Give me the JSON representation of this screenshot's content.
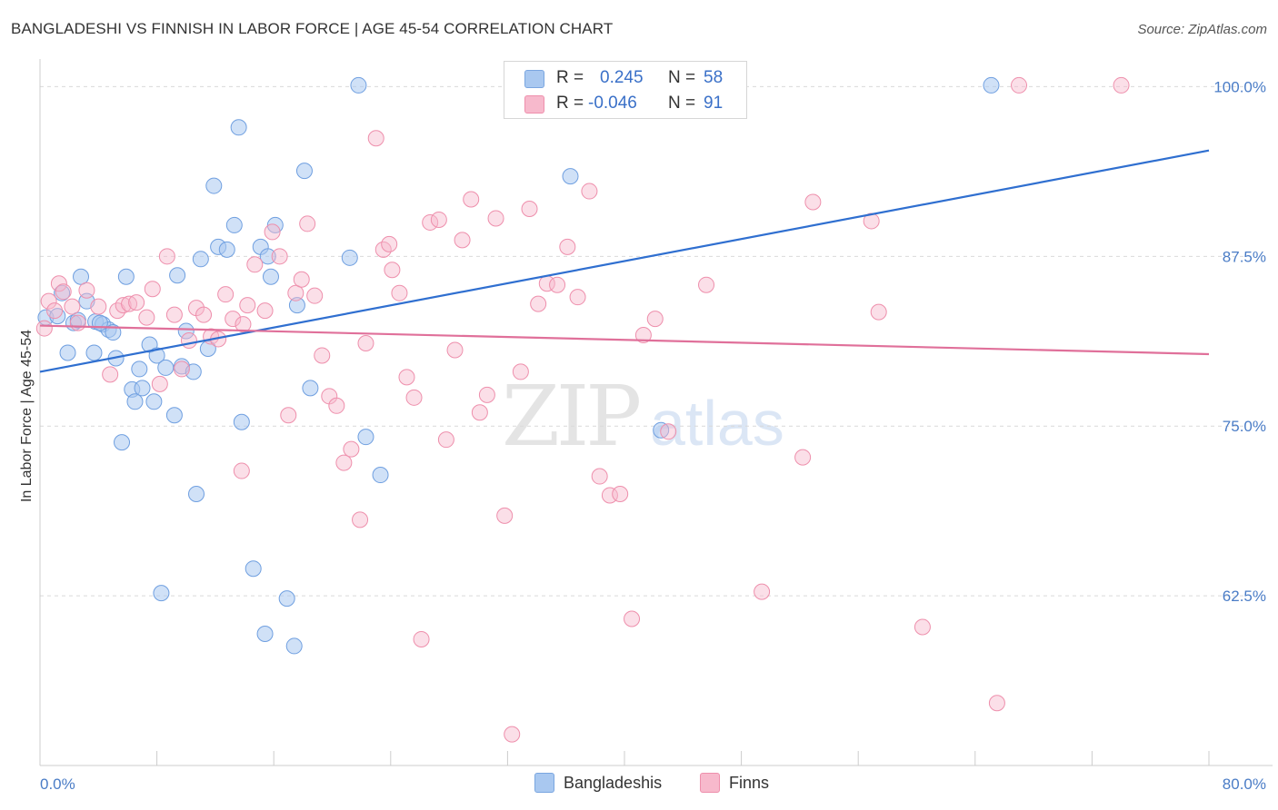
{
  "header": {
    "title": "BANGLADESHI VS FINNISH IN LABOR FORCE | AGE 45-54 CORRELATION CHART",
    "source": "Source: ZipAtlas.com"
  },
  "watermark": {
    "zip": "ZIP",
    "atlas": "atlas"
  },
  "legend_top": {
    "rows": [
      {
        "r_label": "R =",
        "r_value": "0.245",
        "n_label": "N =",
        "n_value": "58",
        "color": "#a9c8f0"
      },
      {
        "r_label": "R =",
        "r_value": "-0.046",
        "n_label": "N =",
        "n_value": "91",
        "color": "#f7b9cc"
      }
    ]
  },
  "legend_bottom": {
    "items": [
      {
        "label": "Bangladeshis",
        "color": "#a9c8f0"
      },
      {
        "label": "Finns",
        "color": "#f7b9cc"
      }
    ]
  },
  "chart_data": {
    "type": "scatter",
    "title": "BANGLADESHI VS FINNISH IN LABOR FORCE | AGE 45-54 CORRELATION CHART",
    "xlabel": "",
    "ylabel": "In Labor Force | Age 45-54",
    "xlim": [
      0,
      80
    ],
    "ylim": [
      50,
      101.5
    ],
    "x_tick_labels": [
      "0.0%",
      "80.0%"
    ],
    "y_ticks": [
      100,
      87.5,
      75,
      62.5
    ],
    "y_tick_labels": [
      "100.0%",
      "87.5%",
      "75.0%",
      "62.5%"
    ],
    "grid": "horizontal dashed",
    "legend_position": "top-center",
    "series": [
      {
        "name": "Bangladeshis",
        "color": "#6f9fe0",
        "fill": "#a9c8f0",
        "trend": {
          "x": [
            0,
            80
          ],
          "y": [
            79,
            95.3
          ],
          "color": "#2f6fd0"
        },
        "points": [
          [
            0.4,
            83
          ],
          [
            1.2,
            83.1
          ],
          [
            1.5,
            84.8
          ],
          [
            1.9,
            80.4
          ],
          [
            2.3,
            82.6
          ],
          [
            2.8,
            86
          ],
          [
            3.2,
            84.2
          ],
          [
            3.7,
            80.4
          ],
          [
            3.8,
            82.7
          ],
          [
            4.3,
            82.5
          ],
          [
            4.7,
            82.1
          ],
          [
            5,
            81.9
          ],
          [
            5.2,
            80
          ],
          [
            5.6,
            73.8
          ],
          [
            5.9,
            86
          ],
          [
            6.3,
            77.7
          ],
          [
            6.5,
            76.8
          ],
          [
            6.8,
            79.2
          ],
          [
            7,
            77.8
          ],
          [
            7.5,
            81
          ],
          [
            7.8,
            76.8
          ],
          [
            8,
            80.2
          ],
          [
            8.3,
            62.7
          ],
          [
            8.6,
            79.3
          ],
          [
            9.2,
            75.8
          ],
          [
            9.4,
            86.1
          ],
          [
            9.7,
            79.4
          ],
          [
            10,
            82
          ],
          [
            10.5,
            79
          ],
          [
            10.7,
            70
          ],
          [
            11,
            87.3
          ],
          [
            11.5,
            80.7
          ],
          [
            11.9,
            92.7
          ],
          [
            12.2,
            88.2
          ],
          [
            12.8,
            88
          ],
          [
            13.3,
            89.8
          ],
          [
            13.6,
            97
          ],
          [
            13.8,
            75.3
          ],
          [
            14.6,
            64.5
          ],
          [
            15.1,
            88.2
          ],
          [
            15.4,
            59.7
          ],
          [
            15.6,
            87.5
          ],
          [
            15.8,
            86
          ],
          [
            16.1,
            89.8
          ],
          [
            16.9,
            62.3
          ],
          [
            17.6,
            83.9
          ],
          [
            18.1,
            93.8
          ],
          [
            18.5,
            77.8
          ],
          [
            21.2,
            87.4
          ],
          [
            21.8,
            100.1
          ],
          [
            22.3,
            74.2
          ],
          [
            23.3,
            71.4
          ],
          [
            36.3,
            93.4
          ],
          [
            42.5,
            74.7
          ],
          [
            65.1,
            100.1
          ],
          [
            17.4,
            58.8
          ],
          [
            4.1,
            82.6
          ],
          [
            2.6,
            82.8
          ]
        ]
      },
      {
        "name": "Finns",
        "color": "#ee8fac",
        "fill": "#f7b9cc",
        "trend": {
          "x": [
            0,
            80
          ],
          "y": [
            82.4,
            80.3
          ],
          "color": "#e0709a"
        },
        "points": [
          [
            0.3,
            82.2
          ],
          [
            0.6,
            84.2
          ],
          [
            1,
            83.5
          ],
          [
            1.3,
            85.5
          ],
          [
            1.6,
            84.9
          ],
          [
            2.2,
            83.8
          ],
          [
            2.6,
            82.6
          ],
          [
            3.2,
            85
          ],
          [
            4,
            83.8
          ],
          [
            4.8,
            78.8
          ],
          [
            5.3,
            83.5
          ],
          [
            5.7,
            83.9
          ],
          [
            6.1,
            84
          ],
          [
            6.6,
            84.1
          ],
          [
            7.3,
            83
          ],
          [
            7.7,
            85.1
          ],
          [
            8.2,
            78.1
          ],
          [
            8.7,
            87.5
          ],
          [
            9.2,
            83.2
          ],
          [
            9.7,
            79.2
          ],
          [
            10.2,
            81.3
          ],
          [
            10.7,
            83.7
          ],
          [
            11.2,
            83.2
          ],
          [
            11.7,
            81.6
          ],
          [
            12.2,
            81.4
          ],
          [
            12.7,
            84.7
          ],
          [
            13.2,
            82.9
          ],
          [
            13.8,
            71.7
          ],
          [
            14.2,
            83.9
          ],
          [
            14.7,
            86.9
          ],
          [
            15.4,
            83.5
          ],
          [
            15.9,
            89.3
          ],
          [
            16.4,
            87.5
          ],
          [
            17,
            75.8
          ],
          [
            17.5,
            84.8
          ],
          [
            17.9,
            85.8
          ],
          [
            18.3,
            89.9
          ],
          [
            18.8,
            84.6
          ],
          [
            19.3,
            80.2
          ],
          [
            19.8,
            77.2
          ],
          [
            20.3,
            76.5
          ],
          [
            20.8,
            72.3
          ],
          [
            21.3,
            73.3
          ],
          [
            21.9,
            68.1
          ],
          [
            22.3,
            81.1
          ],
          [
            23,
            96.2
          ],
          [
            23.5,
            88
          ],
          [
            24.1,
            86.5
          ],
          [
            24.6,
            84.8
          ],
          [
            25.1,
            78.6
          ],
          [
            25.6,
            77.1
          ],
          [
            26.1,
            59.3
          ],
          [
            26.7,
            90
          ],
          [
            27.3,
            90.2
          ],
          [
            27.8,
            74
          ],
          [
            28.4,
            80.6
          ],
          [
            28.9,
            88.7
          ],
          [
            29.5,
            91.7
          ],
          [
            30.1,
            76
          ],
          [
            30.6,
            77.3
          ],
          [
            31.2,
            90.3
          ],
          [
            31.8,
            68.4
          ],
          [
            32.3,
            52.3
          ],
          [
            32.9,
            79
          ],
          [
            33.5,
            91
          ],
          [
            34.1,
            84
          ],
          [
            34.7,
            85.5
          ],
          [
            35.4,
            85.4
          ],
          [
            36.1,
            88.2
          ],
          [
            36.8,
            84.5
          ],
          [
            37.6,
            92.3
          ],
          [
            38.3,
            71.3
          ],
          [
            39,
            69.9
          ],
          [
            39.7,
            70
          ],
          [
            40.5,
            60.8
          ],
          [
            41.3,
            81.7
          ],
          [
            42.1,
            82.9
          ],
          [
            43,
            74.6
          ],
          [
            43.9,
            100
          ],
          [
            45.6,
            85.4
          ],
          [
            49.4,
            62.8
          ],
          [
            52.2,
            72.7
          ],
          [
            52.9,
            91.5
          ],
          [
            56.9,
            90.1
          ],
          [
            57.4,
            83.4
          ],
          [
            60.4,
            60.2
          ],
          [
            65.5,
            54.6
          ],
          [
            67,
            100.1
          ],
          [
            74,
            100.1
          ],
          [
            23.9,
            88.4
          ],
          [
            13.9,
            82.5
          ]
        ]
      }
    ]
  }
}
